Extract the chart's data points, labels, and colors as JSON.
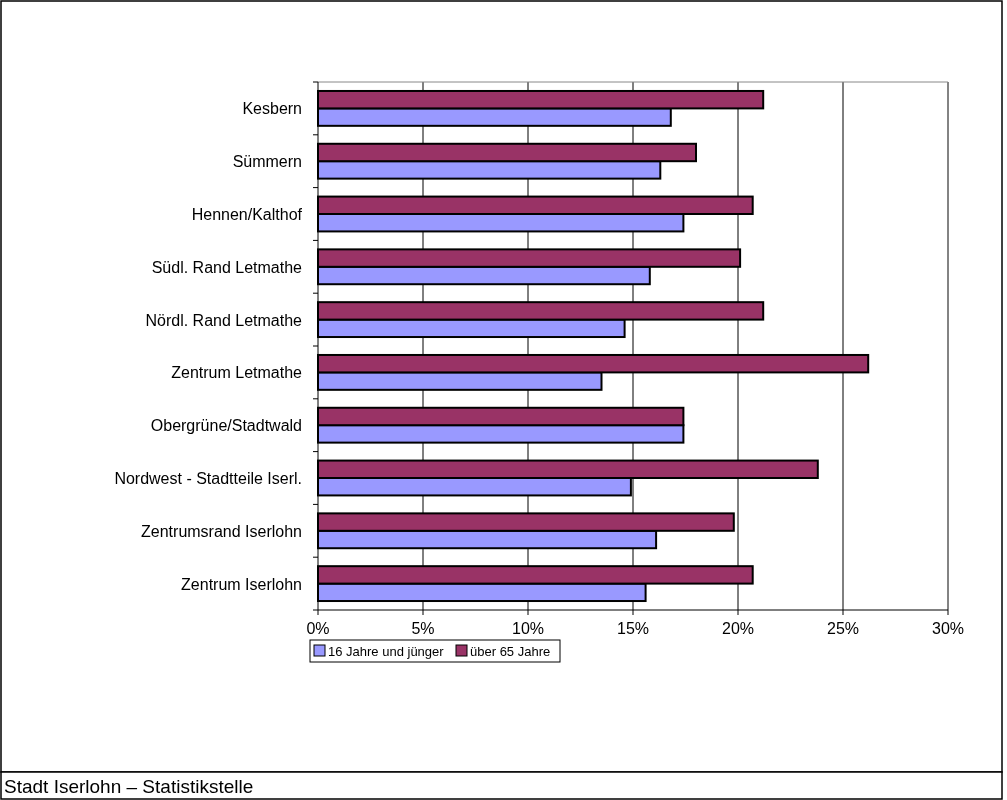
{
  "chart_data": {
    "type": "bar",
    "orientation": "horizontal",
    "categories": [
      "Kesbern",
      "Sümmern",
      "Hennen/Kalthof",
      "Südl. Rand Letmathe",
      "Nördl. Rand Letmathe",
      "Zentrum Letmathe",
      "Obergrüne/Stadtwald",
      "Nordwest - Stadtteile Iserl.",
      "Zentrumsrand Iserlohn",
      "Zentrum Iserlohn"
    ],
    "series": [
      {
        "name": "16 Jahre und jünger",
        "color": "#9999ff",
        "values": [
          16.8,
          16.3,
          17.4,
          15.8,
          14.6,
          13.5,
          17.4,
          14.9,
          16.1,
          15.6
        ]
      },
      {
        "name": "über 65 Jahre",
        "color": "#993366",
        "values": [
          21.2,
          18.0,
          20.7,
          20.1,
          21.2,
          26.2,
          17.4,
          23.8,
          19.8,
          20.7
        ]
      }
    ],
    "xlim": [
      0,
      30
    ],
    "xticks": [
      {
        "value": 0,
        "label": "0%"
      },
      {
        "value": 5,
        "label": "5%"
      },
      {
        "value": 10,
        "label": "10%"
      },
      {
        "value": 15,
        "label": "15%"
      },
      {
        "value": 20,
        "label": "20%"
      },
      {
        "value": 25,
        "label": "25%"
      },
      {
        "value": 30,
        "label": "30%"
      }
    ],
    "grid": "x",
    "legend": "bottom left",
    "annotations": [
      "Stadt Iserlohn – Statistikstelle"
    ]
  }
}
